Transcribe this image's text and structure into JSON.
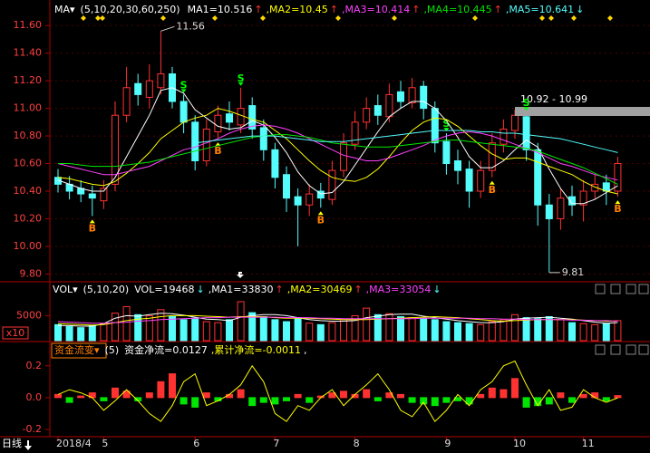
{
  "chart_data": [
    {
      "type": "candlestick",
      "indicator": "MA▾",
      "params": "(5,10,20,30,60,250)",
      "period": "日线",
      "categories": [
        "2018/4",
        null,
        null,
        null,
        "5",
        null,
        null,
        null,
        null,
        null,
        null,
        null,
        "6",
        null,
        null,
        null,
        null,
        null,
        null,
        "7",
        null,
        null,
        null,
        null,
        null,
        null,
        "8",
        null,
        null,
        null,
        null,
        null,
        null,
        null,
        "9",
        null,
        null,
        null,
        null,
        null,
        "10",
        null,
        null,
        null,
        null,
        null,
        "11",
        null,
        null,
        null
      ],
      "open": [
        10.5,
        10.45,
        10.42,
        10.38,
        10.33,
        10.45,
        10.95,
        11.18,
        11.08,
        11.15,
        11.25,
        11.05,
        10.9,
        10.62,
        10.83,
        10.96,
        10.88,
        11.02,
        10.86,
        10.7,
        10.52,
        10.36,
        10.3,
        10.4,
        10.34,
        10.55,
        10.74,
        10.9,
        11.02,
        10.94,
        11.12,
        11.04,
        11.16,
        11.0,
        10.76,
        10.62,
        10.56,
        10.4,
        10.55,
        10.74,
        10.84,
        10.94,
        10.7,
        10.3,
        10.2,
        10.36,
        10.3,
        10.4,
        10.46,
        10.4
      ],
      "high": [
        10.56,
        10.51,
        10.48,
        10.44,
        10.48,
        11.05,
        11.3,
        11.25,
        11.32,
        11.56,
        11.3,
        11.1,
        10.95,
        10.92,
        11.02,
        11.05,
        11.15,
        11.08,
        10.92,
        10.75,
        10.58,
        10.42,
        10.45,
        10.46,
        10.62,
        10.82,
        10.98,
        11.08,
        11.1,
        11.18,
        11.2,
        11.22,
        11.2,
        11.05,
        10.82,
        10.7,
        10.62,
        10.62,
        10.82,
        10.92,
        10.99,
        10.97,
        10.75,
        10.38,
        10.42,
        10.44,
        10.48,
        10.52,
        10.52,
        10.65
      ],
      "low": [
        10.39,
        10.34,
        10.32,
        10.22,
        10.27,
        10.4,
        10.9,
        11.02,
        11.0,
        11.1,
        11.0,
        10.82,
        10.55,
        10.58,
        10.78,
        10.84,
        10.82,
        10.78,
        10.62,
        10.42,
        10.25,
        10.0,
        10.22,
        10.28,
        10.3,
        10.5,
        10.7,
        10.85,
        10.88,
        10.9,
        11.0,
        11.0,
        10.92,
        10.68,
        10.52,
        10.45,
        10.28,
        10.35,
        10.5,
        10.68,
        10.78,
        10.62,
        10.15,
        9.81,
        10.12,
        10.22,
        10.18,
        10.34,
        10.3,
        10.36
      ],
      "close": [
        10.45,
        10.4,
        10.38,
        10.35,
        10.42,
        10.95,
        11.15,
        11.1,
        11.2,
        11.25,
        11.05,
        10.9,
        10.62,
        10.85,
        10.95,
        10.9,
        11.0,
        10.85,
        10.7,
        10.5,
        10.35,
        10.3,
        10.38,
        10.35,
        10.55,
        10.75,
        10.9,
        11.0,
        10.95,
        11.1,
        11.05,
        11.15,
        11.0,
        10.75,
        10.6,
        10.55,
        10.4,
        10.55,
        10.75,
        10.85,
        10.95,
        10.7,
        10.3,
        10.2,
        10.35,
        10.3,
        10.4,
        10.45,
        10.4,
        10.6
      ],
      "up_color": "#ff3232",
      "down_color": "#54fcfc",
      "ylim": [
        9.75,
        11.7
      ],
      "yticks": [
        {
          "value": 9.8,
          "label": "9.80"
        },
        {
          "value": 10,
          "label": "10.00"
        },
        {
          "value": 10.2,
          "label": "10.20"
        },
        {
          "value": 10.4,
          "label": "10.40"
        },
        {
          "value": 10.6,
          "label": "10.60"
        },
        {
          "value": 10.8,
          "label": "10.80"
        },
        {
          "value": 11,
          "label": "11.00"
        },
        {
          "value": 11.2,
          "label": "11.20"
        },
        {
          "value": 11.4,
          "label": "11.40"
        },
        {
          "value": 11.6,
          "label": "11.60"
        }
      ],
      "grid": true,
      "series": [
        {
          "name": "MA1=10.516",
          "arrow": "↑",
          "color": "#ffffff",
          "values": [
            10.48,
            10.45,
            10.42,
            10.4,
            10.4,
            10.5,
            10.65,
            10.8,
            10.95,
            11.13,
            11.15,
            11.11,
            10.99,
            10.93,
            10.87,
            10.85,
            10.86,
            10.91,
            10.88,
            10.79,
            10.68,
            10.54,
            10.44,
            10.38,
            10.39,
            10.47,
            10.59,
            10.71,
            10.83,
            10.94,
            11.0,
            11.05,
            11.05,
            11.0,
            10.91,
            10.79,
            10.65,
            10.57,
            10.57,
            10.62,
            10.7,
            10.77,
            10.72,
            10.56,
            10.42,
            10.31,
            10.31,
            10.34,
            10.39,
            10.44
          ]
        },
        {
          "name": ",MA2=10.45",
          "arrow": "↑",
          "color": "#ffff00",
          "values": [
            10.5,
            10.49,
            10.47,
            10.45,
            10.44,
            10.47,
            10.53,
            10.6,
            10.68,
            10.78,
            10.84,
            10.9,
            10.93,
            10.95,
            11.0,
            10.98,
            10.95,
            10.92,
            10.9,
            10.84,
            10.78,
            10.7,
            10.62,
            10.55,
            10.5,
            10.48,
            10.47,
            10.5,
            10.56,
            10.65,
            10.75,
            10.84,
            10.9,
            10.93,
            10.92,
            10.87,
            10.8,
            10.73,
            10.67,
            10.63,
            10.64,
            10.64,
            10.61,
            10.58,
            10.55,
            10.52,
            10.47,
            10.43,
            10.4,
            10.38
          ]
        },
        {
          "name": ",MA3=10.414",
          "arrow": "↑",
          "color": "#ff40ff",
          "values": [
            10.6,
            10.58,
            10.56,
            10.54,
            10.52,
            10.52,
            10.54,
            10.56,
            10.58,
            10.62,
            10.66,
            10.7,
            10.72,
            10.75,
            10.78,
            10.82,
            10.85,
            10.87,
            10.88,
            10.87,
            10.85,
            10.82,
            10.78,
            10.74,
            10.7,
            10.66,
            10.64,
            10.62,
            10.62,
            10.64,
            10.67,
            10.7,
            10.73,
            10.77,
            10.8,
            10.82,
            10.83,
            10.82,
            10.8,
            10.77,
            10.74,
            10.71,
            10.68,
            10.64,
            10.6,
            10.58,
            10.55,
            10.52,
            10.5,
            10.48
          ]
        },
        {
          "name": ",MA4=10.445",
          "arrow": "↑",
          "color": "#00e600",
          "values": [
            10.6,
            10.6,
            10.59,
            10.58,
            10.58,
            10.58,
            10.59,
            10.6,
            10.61,
            10.63,
            10.65,
            10.67,
            10.69,
            10.71,
            10.73,
            10.75,
            10.77,
            10.79,
            10.8,
            10.81,
            10.81,
            10.8,
            10.79,
            10.77,
            10.75,
            10.74,
            10.73,
            10.72,
            10.72,
            10.72,
            10.73,
            10.74,
            10.75,
            10.76,
            10.77,
            10.77,
            10.76,
            10.75,
            10.74,
            10.73,
            10.72,
            10.71,
            10.69,
            10.66,
            10.63,
            10.6,
            10.57,
            10.53,
            10.49,
            10.45
          ]
        },
        {
          "name": ",MA5=10.641",
          "arrow": "↓",
          "color": "#54fcfc",
          "values": [
            null,
            null,
            null,
            null,
            null,
            null,
            null,
            null,
            null,
            null,
            null,
            null,
            10.75,
            10.76,
            10.77,
            10.78,
            10.79,
            10.8,
            10.8,
            10.8,
            10.79,
            10.78,
            10.77,
            10.76,
            10.76,
            10.76,
            10.77,
            10.78,
            10.79,
            10.8,
            10.81,
            10.82,
            10.83,
            10.84,
            10.84,
            10.84,
            10.84,
            10.83,
            10.83,
            10.82,
            10.82,
            10.81,
            10.8,
            10.79,
            10.78,
            10.76,
            10.74,
            10.72,
            10.7,
            10.68
          ]
        }
      ],
      "annotations": [
        "10.92 - 10.99"
      ],
      "signals": [
        "B",
        "S",
        "B",
        "S",
        "B",
        "S",
        "B",
        "S",
        "B"
      ]
    },
    {
      "type": "bar",
      "indicator": "VOL▾",
      "params": "(5,10,20)",
      "current": "VOL=19468",
      "current_arrow": "↓",
      "unit_label": "x10",
      "values": [
        3200,
        2800,
        2600,
        3000,
        3400,
        5500,
        6800,
        5200,
        5000,
        6200,
        4800,
        4200,
        4500,
        3800,
        3600,
        4200,
        7800,
        5600,
        4800,
        4200,
        3800,
        4600,
        3500,
        3200,
        3600,
        4200,
        5000,
        6500,
        5200,
        5400,
        4800,
        4600,
        4400,
        4200,
        3800,
        3600,
        3400,
        3200,
        3800,
        4200,
        5200,
        4600,
        4400,
        4800,
        4200,
        3600,
        3400,
        3200,
        3400,
        4000
      ],
      "up_color": "#ff3232",
      "down_color": "#54fcfc",
      "ylim": [
        0,
        8700
      ],
      "yticks": [
        5000
      ],
      "series": [
        {
          "name": ",MA1=33830",
          "arrow": "↑",
          "color": "#ffffff",
          "values": [
            3000,
            3000,
            2900,
            2900,
            3400,
            4500,
            5000,
            4900,
            5200,
            5500,
            5400,
            5100,
            4700,
            4300,
            4200,
            4000,
            4700,
            5000,
            5200,
            5200,
            5000,
            4600,
            4200,
            4000,
            3900,
            3900,
            4000,
            4600,
            4900,
            5200,
            5300,
            5300,
            4900,
            4600,
            4300,
            4000,
            3800,
            3600,
            3600,
            3800,
            4300,
            4500,
            4600,
            4700,
            4500,
            4300,
            4000,
            3700,
            3500,
            3600
          ]
        },
        {
          "name": ",MA2=30469",
          "arrow": "↑",
          "color": "#ffff00",
          "values": [
            3400,
            3300,
            3200,
            3100,
            3200,
            3600,
            4000,
            4300,
            4500,
            4800,
            5000,
            5000,
            5000,
            4900,
            4800,
            4700,
            4800,
            4800,
            4800,
            4600,
            4500,
            4500,
            4500,
            4400,
            4300,
            4200,
            4200,
            4200,
            4300,
            4400,
            4500,
            4600,
            4700,
            4800,
            4700,
            4600,
            4400,
            4200,
            4000,
            3900,
            4000,
            4100,
            4200,
            4200,
            4200,
            4200,
            4100,
            4000,
            3900,
            3900
          ]
        },
        {
          "name": ",MA3=33054",
          "arrow": "↓",
          "color": "#ff40ff",
          "values": [
            3800,
            3700,
            3600,
            3500,
            3500,
            3600,
            3700,
            3900,
            4000,
            4200,
            4300,
            4400,
            4500,
            4600,
            4600,
            4700,
            4700,
            4700,
            4700,
            4700,
            4600,
            4600,
            4600,
            4500,
            4500,
            4400,
            4400,
            4400,
            4400,
            4400,
            4400,
            4400,
            4500,
            4500,
            4500,
            4500,
            4500,
            4400,
            4400,
            4300,
            4300,
            4200,
            4200,
            4200,
            4200,
            4100,
            4100,
            4000,
            4000,
            3900
          ]
        }
      ]
    },
    {
      "type": "bar",
      "indicator": "资金流变▾",
      "params": "(5)",
      "current": "资金净流=0.0127",
      "values": [
        0.02,
        -0.03,
        0.01,
        0.03,
        -0.02,
        0.06,
        0.04,
        -0.02,
        0.03,
        0.1,
        0.15,
        -0.04,
        -0.06,
        0.03,
        -0.02,
        0.02,
        0.05,
        -0.05,
        -0.03,
        -0.04,
        -0.02,
        0.02,
        -0.03,
        0.01,
        0.03,
        0.04,
        0.02,
        0.05,
        -0.02,
        0.03,
        0.02,
        -0.03,
        -0.04,
        -0.05,
        -0.03,
        -0.02,
        -0.04,
        0.02,
        0.06,
        0.05,
        0.12,
        -0.06,
        -0.05,
        -0.04,
        0.03,
        -0.03,
        0.02,
        0.03,
        -0.02,
        0.0127
      ],
      "pos_color": "#ff3232",
      "neg_color": "#00e600",
      "ylim": [
        -0.24,
        0.25
      ],
      "yticks": [
        0.2,
        {
          "value": 0,
          "label": "0.0"
        },
        -0.2
      ],
      "series": [
        {
          "name": ",累计净流=-0.0011",
          "color": "#ffff00",
          "values": [
            0.02,
            0.05,
            0.03,
            0.0,
            -0.08,
            -0.02,
            0.05,
            -0.02,
            -0.1,
            -0.15,
            -0.05,
            0.1,
            0.15,
            -0.05,
            -0.02,
            0.02,
            0.08,
            0.2,
            0.1,
            -0.1,
            -0.15,
            -0.05,
            -0.08,
            0.0,
            0.05,
            -0.05,
            0.02,
            0.08,
            0.15,
            0.05,
            -0.08,
            -0.12,
            -0.03,
            -0.15,
            -0.08,
            0.02,
            -0.05,
            0.05,
            0.1,
            0.2,
            0.23,
            0.08,
            -0.05,
            0.05,
            -0.08,
            -0.06,
            0.05,
            0.0,
            -0.03,
            -0.0011
          ]
        }
      ],
      "trailer": ","
    }
  ]
}
